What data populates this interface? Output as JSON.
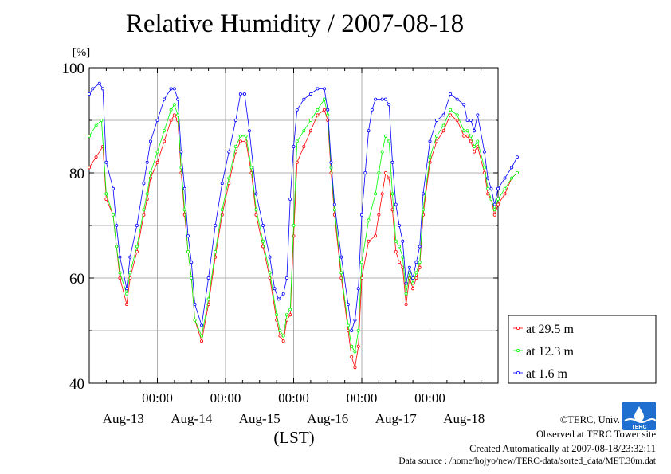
{
  "chart_data": {
    "type": "line",
    "title": "Relative Humidity / 2007-08-18",
    "ylabel": "[%]",
    "xlabel": "(LST)",
    "ylim": [
      40,
      100
    ],
    "yticks": [
      "40",
      "60",
      "80",
      "100"
    ],
    "day_labels": [
      "Aug-13",
      "Aug-14",
      "Aug-15",
      "Aug-16",
      "Aug-17",
      "Aug-18"
    ],
    "time_labels": [
      "00:00",
      "00:00",
      "00:00",
      "00:00",
      "00:00"
    ],
    "x_unit": "days",
    "x_range": [
      0,
      6
    ],
    "grid": true,
    "legend_position": "right",
    "series": [
      {
        "name": "at 29.5 m",
        "color": "#ff0000",
        "points": [
          [
            0.0,
            81
          ],
          [
            0.1,
            83
          ],
          [
            0.2,
            85
          ],
          [
            0.25,
            75
          ],
          [
            0.35,
            72
          ],
          [
            0.4,
            66
          ],
          [
            0.45,
            60
          ],
          [
            0.55,
            55
          ],
          [
            0.6,
            60
          ],
          [
            0.7,
            65
          ],
          [
            0.8,
            72
          ],
          [
            0.85,
            75
          ],
          [
            0.9,
            79
          ],
          [
            1.0,
            82
          ],
          [
            1.1,
            86
          ],
          [
            1.2,
            90
          ],
          [
            1.25,
            91
          ],
          [
            1.3,
            90
          ],
          [
            1.35,
            80
          ],
          [
            1.4,
            72
          ],
          [
            1.45,
            65
          ],
          [
            1.5,
            60
          ],
          [
            1.55,
            52
          ],
          [
            1.65,
            48
          ],
          [
            1.75,
            55
          ],
          [
            1.85,
            64
          ],
          [
            1.95,
            72
          ],
          [
            2.05,
            78
          ],
          [
            2.15,
            84
          ],
          [
            2.22,
            86
          ],
          [
            2.3,
            86
          ],
          [
            2.38,
            80
          ],
          [
            2.45,
            72
          ],
          [
            2.55,
            66
          ],
          [
            2.65,
            60
          ],
          [
            2.75,
            52
          ],
          [
            2.8,
            49
          ],
          [
            2.85,
            48
          ],
          [
            2.9,
            52
          ],
          [
            2.95,
            53
          ],
          [
            3.0,
            68
          ],
          [
            3.05,
            82
          ],
          [
            3.15,
            85
          ],
          [
            3.25,
            88
          ],
          [
            3.35,
            91
          ],
          [
            3.45,
            92
          ],
          [
            3.5,
            90
          ],
          [
            3.55,
            80
          ],
          [
            3.6,
            72
          ],
          [
            3.7,
            60
          ],
          [
            3.8,
            50
          ],
          [
            3.85,
            45
          ],
          [
            3.9,
            43
          ],
          [
            3.95,
            47
          ],
          [
            4.0,
            60
          ],
          [
            4.1,
            67
          ],
          [
            4.2,
            68
          ],
          [
            4.25,
            72
          ],
          [
            4.3,
            76
          ],
          [
            4.35,
            80
          ],
          [
            4.4,
            79
          ],
          [
            4.45,
            73
          ],
          [
            4.5,
            65
          ],
          [
            4.55,
            63
          ],
          [
            4.6,
            62
          ],
          [
            4.65,
            55
          ],
          [
            4.7,
            60
          ],
          [
            4.75,
            58
          ],
          [
            4.8,
            60
          ],
          [
            4.85,
            62
          ],
          [
            4.9,
            72
          ],
          [
            5.0,
            82
          ],
          [
            5.1,
            86
          ],
          [
            5.2,
            88
          ],
          [
            5.3,
            91
          ],
          [
            5.4,
            90
          ],
          [
            5.5,
            87
          ],
          [
            5.55,
            87
          ],
          [
            5.6,
            86
          ],
          [
            5.65,
            84
          ],
          [
            5.7,
            85
          ],
          [
            5.8,
            80
          ],
          [
            5.85,
            76
          ],
          [
            5.9,
            75
          ],
          [
            5.95,
            72
          ],
          [
            6.0,
            74
          ],
          [
            6.1,
            76
          ],
          [
            6.2,
            79
          ],
          [
            6.28,
            80
          ]
        ]
      },
      {
        "name": "at 12.3 m",
        "color": "#00ff00",
        "points": [
          [
            0.0,
            87
          ],
          [
            0.1,
            89
          ],
          [
            0.18,
            90
          ],
          [
            0.25,
            76
          ],
          [
            0.35,
            72
          ],
          [
            0.4,
            66
          ],
          [
            0.45,
            61
          ],
          [
            0.55,
            57
          ],
          [
            0.6,
            61
          ],
          [
            0.7,
            66
          ],
          [
            0.8,
            73
          ],
          [
            0.85,
            76
          ],
          [
            0.9,
            80
          ],
          [
            1.0,
            84
          ],
          [
            1.1,
            88
          ],
          [
            1.2,
            92
          ],
          [
            1.25,
            93
          ],
          [
            1.3,
            91
          ],
          [
            1.35,
            81
          ],
          [
            1.4,
            73
          ],
          [
            1.45,
            65
          ],
          [
            1.5,
            60
          ],
          [
            1.55,
            52
          ],
          [
            1.65,
            49
          ],
          [
            1.75,
            56
          ],
          [
            1.85,
            65
          ],
          [
            1.95,
            73
          ],
          [
            2.05,
            79
          ],
          [
            2.15,
            85
          ],
          [
            2.22,
            87
          ],
          [
            2.3,
            87
          ],
          [
            2.38,
            81
          ],
          [
            2.45,
            73
          ],
          [
            2.55,
            67
          ],
          [
            2.65,
            61
          ],
          [
            2.75,
            53
          ],
          [
            2.8,
            50
          ],
          [
            2.85,
            49
          ],
          [
            2.9,
            53
          ],
          [
            2.95,
            54
          ],
          [
            3.0,
            70
          ],
          [
            3.05,
            86
          ],
          [
            3.15,
            88
          ],
          [
            3.25,
            90
          ],
          [
            3.35,
            92
          ],
          [
            3.45,
            94
          ],
          [
            3.5,
            91
          ],
          [
            3.55,
            81
          ],
          [
            3.6,
            73
          ],
          [
            3.7,
            61
          ],
          [
            3.8,
            51
          ],
          [
            3.85,
            47
          ],
          [
            3.9,
            46
          ],
          [
            3.95,
            50
          ],
          [
            4.0,
            63
          ],
          [
            4.1,
            71
          ],
          [
            4.2,
            76
          ],
          [
            4.25,
            80
          ],
          [
            4.3,
            84
          ],
          [
            4.35,
            87
          ],
          [
            4.4,
            86
          ],
          [
            4.45,
            76
          ],
          [
            4.5,
            67
          ],
          [
            4.55,
            66
          ],
          [
            4.6,
            64
          ],
          [
            4.65,
            57
          ],
          [
            4.7,
            61
          ],
          [
            4.75,
            59
          ],
          [
            4.8,
            61
          ],
          [
            4.85,
            63
          ],
          [
            4.9,
            73
          ],
          [
            5.0,
            83
          ],
          [
            5.1,
            87
          ],
          [
            5.2,
            89
          ],
          [
            5.3,
            92
          ],
          [
            5.4,
            91
          ],
          [
            5.5,
            88
          ],
          [
            5.55,
            88
          ],
          [
            5.6,
            87
          ],
          [
            5.65,
            85
          ],
          [
            5.7,
            86
          ],
          [
            5.8,
            81
          ],
          [
            5.85,
            77
          ],
          [
            5.9,
            75
          ],
          [
            5.95,
            73
          ],
          [
            6.0,
            75
          ],
          [
            6.1,
            77
          ],
          [
            6.2,
            79
          ],
          [
            6.28,
            80
          ]
        ]
      },
      {
        "name": "at 1.6 m",
        "color": "#0000ff",
        "points": [
          [
            0.0,
            95
          ],
          [
            0.05,
            96
          ],
          [
            0.15,
            97
          ],
          [
            0.2,
            96
          ],
          [
            0.25,
            82
          ],
          [
            0.35,
            77
          ],
          [
            0.4,
            70
          ],
          [
            0.45,
            64
          ],
          [
            0.55,
            58
          ],
          [
            0.6,
            64
          ],
          [
            0.7,
            70
          ],
          [
            0.8,
            78
          ],
          [
            0.85,
            82
          ],
          [
            0.9,
            86
          ],
          [
            1.0,
            90
          ],
          [
            1.1,
            94
          ],
          [
            1.2,
            96
          ],
          [
            1.25,
            96
          ],
          [
            1.3,
            94
          ],
          [
            1.35,
            84
          ],
          [
            1.4,
            77
          ],
          [
            1.45,
            68
          ],
          [
            1.5,
            63
          ],
          [
            1.55,
            55
          ],
          [
            1.65,
            51
          ],
          [
            1.75,
            60
          ],
          [
            1.85,
            70
          ],
          [
            1.95,
            78
          ],
          [
            2.05,
            84
          ],
          [
            2.15,
            90
          ],
          [
            2.22,
            95
          ],
          [
            2.28,
            95
          ],
          [
            2.35,
            88
          ],
          [
            2.45,
            76
          ],
          [
            2.55,
            70
          ],
          [
            2.65,
            64
          ],
          [
            2.72,
            58
          ],
          [
            2.78,
            56
          ],
          [
            2.85,
            57
          ],
          [
            2.9,
            60
          ],
          [
            2.95,
            75
          ],
          [
            3.0,
            85
          ],
          [
            3.05,
            92
          ],
          [
            3.15,
            94
          ],
          [
            3.25,
            95
          ],
          [
            3.35,
            96
          ],
          [
            3.45,
            96
          ],
          [
            3.5,
            92
          ],
          [
            3.55,
            82
          ],
          [
            3.6,
            74
          ],
          [
            3.7,
            64
          ],
          [
            3.8,
            55
          ],
          [
            3.85,
            50
          ],
          [
            3.9,
            52
          ],
          [
            3.95,
            58
          ],
          [
            4.0,
            72
          ],
          [
            4.05,
            80
          ],
          [
            4.1,
            88
          ],
          [
            4.15,
            92
          ],
          [
            4.2,
            94
          ],
          [
            4.3,
            94
          ],
          [
            4.35,
            94
          ],
          [
            4.4,
            93
          ],
          [
            4.45,
            82
          ],
          [
            4.5,
            74
          ],
          [
            4.55,
            70
          ],
          [
            4.6,
            67
          ],
          [
            4.65,
            59
          ],
          [
            4.7,
            62
          ],
          [
            4.75,
            60
          ],
          [
            4.8,
            63
          ],
          [
            4.85,
            66
          ],
          [
            4.9,
            76
          ],
          [
            5.0,
            86
          ],
          [
            5.1,
            90
          ],
          [
            5.2,
            91
          ],
          [
            5.3,
            95
          ],
          [
            5.4,
            94
          ],
          [
            5.5,
            93
          ],
          [
            5.55,
            90
          ],
          [
            5.6,
            90
          ],
          [
            5.65,
            88
          ],
          [
            5.7,
            91
          ],
          [
            5.8,
            84
          ],
          [
            5.85,
            79
          ],
          [
            5.9,
            77
          ],
          [
            5.95,
            74
          ],
          [
            6.0,
            77
          ],
          [
            6.1,
            79
          ],
          [
            6.2,
            81
          ],
          [
            6.28,
            83
          ]
        ]
      }
    ]
  },
  "footer": {
    "copyright": "©TERC, Univ. Tsukuba",
    "observed": "Observed at TERC Tower site",
    "created": "Created Automatically at 2007-08-18/23:32:11",
    "source": "Data source : /home/hojyo/new/TERC-data/sorted_data/MET.30m.dat"
  },
  "logo": {
    "text": "TERC",
    "color": "#1f6fd0"
  }
}
